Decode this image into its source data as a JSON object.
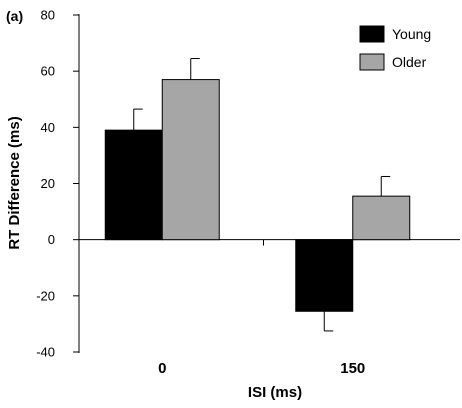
{
  "chart_data": {
    "type": "bar",
    "panel_label": "(a)",
    "title": "",
    "xlabel": "ISI (ms)",
    "ylabel": "RT Difference (ms)",
    "categories": [
      "0",
      "150"
    ],
    "ylim": [
      -40,
      80
    ],
    "yticks": [
      "80",
      "60",
      "40",
      "20",
      "0",
      "-20",
      "-40"
    ],
    "ytick_values": [
      80,
      60,
      40,
      20,
      0,
      -20,
      -40
    ],
    "series": [
      {
        "name": "Young",
        "color": "#000000",
        "values": [
          39,
          -25.5
        ],
        "errors": [
          7.5,
          7
        ]
      },
      {
        "name": "Older",
        "color": "#a6a6a6",
        "values": [
          57,
          15.5
        ],
        "errors": [
          7.5,
          7
        ]
      }
    ],
    "legend": "top-right",
    "grid": false
  }
}
